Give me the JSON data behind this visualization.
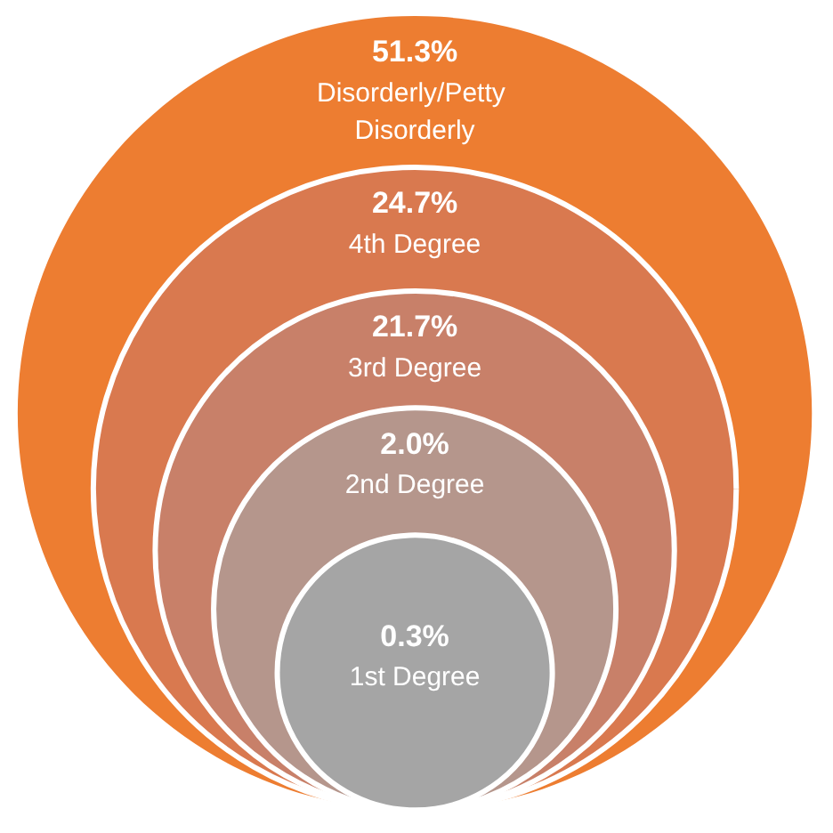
{
  "chart_data": {
    "type": "other",
    "categories": [
      "Disorderly/Petty Disorderly",
      "4th Degree",
      "3rd Degree",
      "2nd Degree",
      "1st Degree"
    ],
    "values": [
      51.3,
      24.7,
      21.7,
      2.0,
      0.3
    ],
    "value_labels": [
      "51.3%",
      "24.7%",
      "21.7%",
      "2.0%",
      "0.3%"
    ],
    "colors": [
      "#ed7d31",
      "#d9794f",
      "#c88069",
      "#b5968c",
      "#a5a5a5"
    ]
  }
}
